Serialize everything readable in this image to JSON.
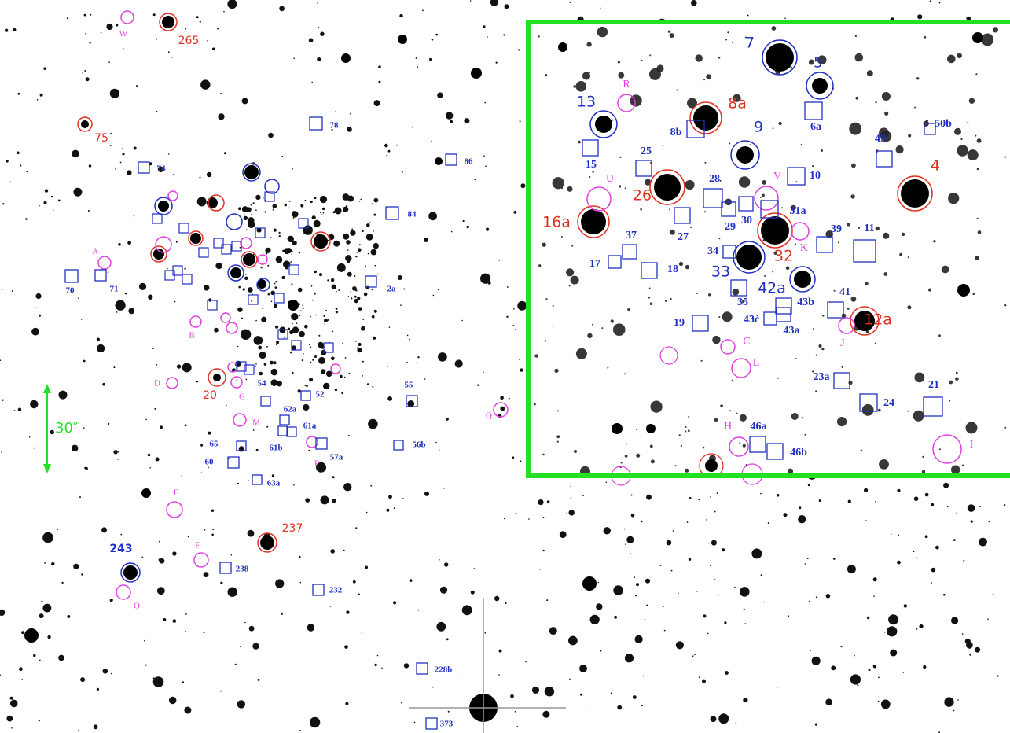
{
  "scale_label": "30″",
  "main": {
    "red_labels": [
      "265",
      "75",
      "20",
      "237"
    ],
    "blue_labels": [
      "243"
    ],
    "magenta_labels": [
      "W",
      "A",
      "B",
      "D",
      "G",
      "M",
      "P",
      "Q",
      "E",
      "F",
      "O"
    ],
    "boxed_labels": [
      "78",
      "86",
      "74",
      "84",
      "70",
      "71",
      "2a",
      "54",
      "52",
      "55",
      "62a",
      "61a",
      "65",
      "61b",
      "60",
      "57a",
      "56b",
      "63a",
      "238",
      "232",
      "228b",
      "373"
    ]
  },
  "inset": {
    "blue_labels": [
      "7",
      "5",
      "13",
      "9",
      "33",
      "42a"
    ],
    "red_labels": [
      "8a",
      "26",
      "16a",
      "4",
      "32",
      "12a"
    ],
    "magenta_labels": [
      "R",
      "U",
      "V",
      "K",
      "C",
      "J",
      "L",
      "H",
      "I"
    ],
    "boxed_labels": [
      "8b",
      "6a",
      "50b",
      "15",
      "25",
      "49",
      "10",
      "28",
      "31a",
      "29",
      "30",
      "27",
      "39",
      "11",
      "37",
      "34",
      "17",
      "18",
      "35",
      "43b",
      "41",
      "43c",
      "43a",
      "19",
      "23a",
      "21",
      "24",
      "46a",
      "46b"
    ]
  }
}
